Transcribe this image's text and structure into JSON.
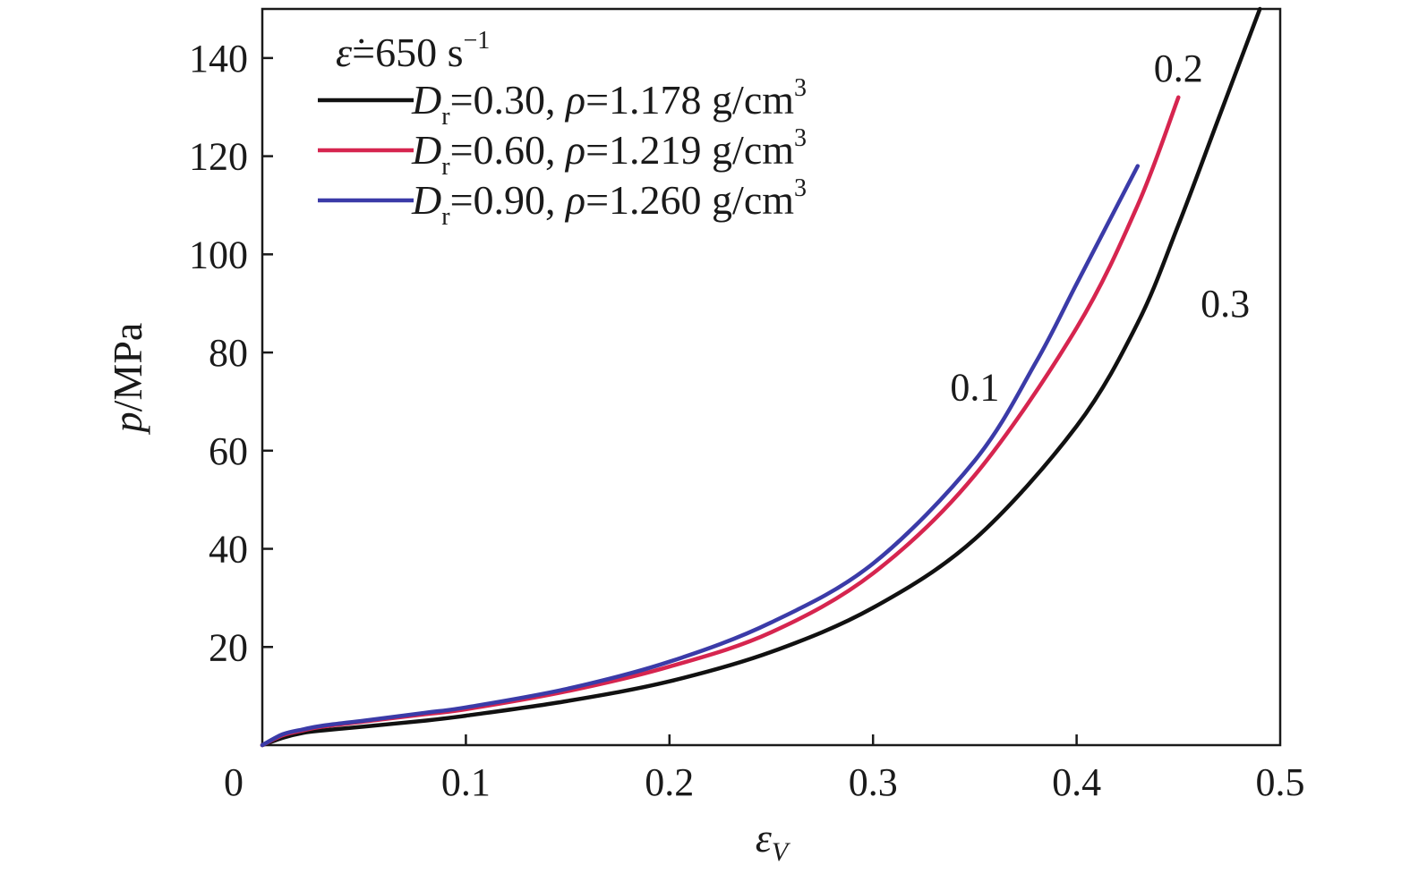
{
  "chart_data": {
    "type": "line",
    "xlabel": "ε",
    "xlabel_sub": "V",
    "ylabel_italic": "p",
    "ylabel_rest": "/MPa",
    "xlim": [
      0,
      0.5
    ],
    "ylim": [
      0,
      150
    ],
    "x_ticks": [
      0,
      0.1,
      0.2,
      0.3,
      0.4,
      0.5
    ],
    "x_tick_labels": [
      "0",
      "0.1",
      "0.2",
      "0.3",
      "0.4",
      "0.5"
    ],
    "y_ticks": [
      20,
      40,
      60,
      80,
      100,
      120,
      140
    ],
    "y_tick_labels": [
      "20",
      "40",
      "60",
      "80",
      "100",
      "120",
      "140"
    ],
    "grid": false,
    "legend_position": "top-left",
    "legend_header": {
      "symbol": "ε̇",
      "text": "=650 s",
      "sup": "−1"
    },
    "series": [
      {
        "name": "Dr=0.30, ρ=1.178 g/cm3",
        "legend_parts": [
          "D",
          "r",
          "=0.30, ",
          "ρ",
          "=1.178 g/cm",
          "3"
        ],
        "color": "#111111",
        "x": [
          0,
          0.01,
          0.02,
          0.03,
          0.05,
          0.08,
          0.1,
          0.15,
          0.2,
          0.25,
          0.3,
          0.35,
          0.4,
          0.43,
          0.45,
          0.47,
          0.49
        ],
        "y": [
          0,
          1.5,
          2.5,
          3,
          3.8,
          5,
          6,
          9,
          13,
          19,
          28,
          42,
          65,
          86,
          106,
          128,
          150
        ]
      },
      {
        "name": "Dr=0.60, ρ=1.219 g/cm3",
        "legend_parts": [
          "D",
          "r",
          "=0.60, ",
          "ρ",
          "=1.219 g/cm",
          "3"
        ],
        "color": "#d6254f",
        "x": [
          0,
          0.01,
          0.02,
          0.03,
          0.05,
          0.08,
          0.1,
          0.15,
          0.2,
          0.25,
          0.3,
          0.35,
          0.4,
          0.43,
          0.45
        ],
        "y": [
          0,
          2,
          3,
          3.8,
          4.8,
          6.3,
          7.3,
          11,
          16,
          23,
          35,
          55,
          85,
          110,
          132
        ]
      },
      {
        "name": "Dr=0.90, ρ=1.260 g/cm3",
        "legend_parts": [
          "D",
          "r",
          "=0.90, ",
          "ρ",
          "=1.260 g/cm",
          "3"
        ],
        "color": "#3b3ba8",
        "x": [
          0,
          0.01,
          0.02,
          0.03,
          0.05,
          0.08,
          0.1,
          0.15,
          0.2,
          0.25,
          0.3,
          0.35,
          0.38,
          0.4,
          0.42,
          0.43
        ],
        "y": [
          0,
          2.2,
          3.2,
          4,
          5,
          6.6,
          7.7,
          11.5,
          17,
          25,
          37,
          58,
          78,
          94,
          110,
          118
        ]
      }
    ],
    "annotations": [
      {
        "text": "0.1",
        "x": 0.35,
        "y": 73
      },
      {
        "text": "0.2",
        "x": 0.45,
        "y": 138
      },
      {
        "text": "0.3",
        "x": 0.473,
        "y": 90
      }
    ]
  }
}
